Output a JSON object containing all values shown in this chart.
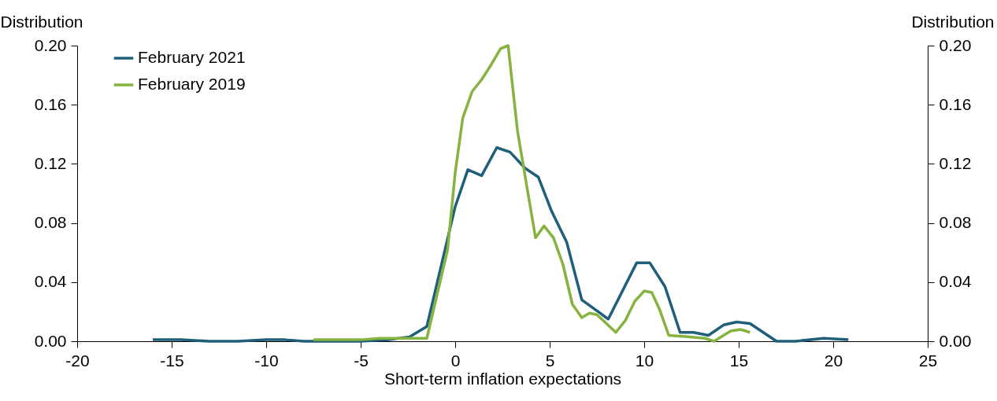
{
  "chart_data": {
    "type": "line",
    "xlabel": "Short-term inflation expectations",
    "ylabel": "Distribution",
    "y2label": "Distribution",
    "xlim": [
      -20,
      25
    ],
    "xticks": [
      -20,
      -15,
      -10,
      -5,
      0,
      5,
      10,
      15,
      20,
      25
    ],
    "ylim": [
      0,
      0.2
    ],
    "yticks": [
      {
        "value": 0,
        "label": "0.00"
      },
      {
        "value": 0.04,
        "label": "0.04"
      },
      {
        "value": 0.08,
        "label": "0.08"
      },
      {
        "value": 0.12,
        "label": "0.12"
      },
      {
        "value": 0.16,
        "label": "0.16"
      },
      {
        "value": 0.2,
        "label": "0.20"
      }
    ],
    "y2lim": [
      0,
      0.2
    ],
    "y2ticks": [
      {
        "value": 0,
        "label": "0.00"
      },
      {
        "value": 0.04,
        "label": "0.04"
      },
      {
        "value": 0.08,
        "label": "0.08"
      },
      {
        "value": 0.12,
        "label": "0.12"
      },
      {
        "value": 0.16,
        "label": "0.16"
      },
      {
        "value": 0.2,
        "label": "0.20"
      }
    ],
    "grid": false,
    "legend": "top left",
    "marker": "none",
    "line_style": "solid",
    "series": [
      {
        "name": "February 2021",
        "color": "#1f5f7a",
        "x": [
          -16,
          -14.5,
          -13,
          -11.5,
          -10,
          -9,
          -8,
          -7.5,
          -5,
          -3.5,
          -2.4,
          -1.5,
          0,
          0.67,
          1.4,
          2.2,
          2.9,
          3.7,
          4.4,
          5.1,
          5.9,
          6.7,
          8.1,
          9.6,
          10.3,
          11.1,
          11.9,
          12.6,
          13.4,
          14.2,
          14.9,
          15.6,
          17,
          18,
          19.5,
          20.8
        ],
        "values": [
          0.001,
          0.001,
          0,
          0,
          0.001,
          0.001,
          0,
          0,
          0,
          0.001,
          0.003,
          0.01,
          0.091,
          0.116,
          0.112,
          0.131,
          0.128,
          0.117,
          0.111,
          0.088,
          0.067,
          0.028,
          0.015,
          0.053,
          0.053,
          0.037,
          0.006,
          0.006,
          0.004,
          0.011,
          0.013,
          0.012,
          0,
          0,
          0.002,
          0.001
        ]
      },
      {
        "name": "February 2019",
        "color": "#86b340",
        "x": [
          -7.5,
          -5,
          -4,
          -3,
          -1.5,
          -0.4,
          0,
          0.4,
          0.9,
          1.4,
          1.9,
          2.4,
          2.8,
          3.3,
          4.25,
          4.7,
          5.2,
          5.7,
          6.2,
          6.7,
          7.1,
          7.5,
          8.0,
          8.5,
          9.0,
          9.5,
          10.0,
          10.4,
          10.8,
          11.3,
          12.3,
          13.2,
          13.7,
          14.2,
          14.6,
          15.1,
          15.6
        ],
        "values": [
          0.001,
          0.001,
          0.002,
          0.002,
          0.002,
          0.062,
          0.114,
          0.151,
          0.169,
          0.177,
          0.187,
          0.198,
          0.2,
          0.142,
          0.07,
          0.078,
          0.07,
          0.052,
          0.025,
          0.016,
          0.019,
          0.018,
          0.012,
          0.006,
          0.014,
          0.027,
          0.034,
          0.033,
          0.022,
          0.004,
          0.003,
          0.002,
          0,
          0.004,
          0.007,
          0.008,
          0.006
        ]
      }
    ]
  }
}
